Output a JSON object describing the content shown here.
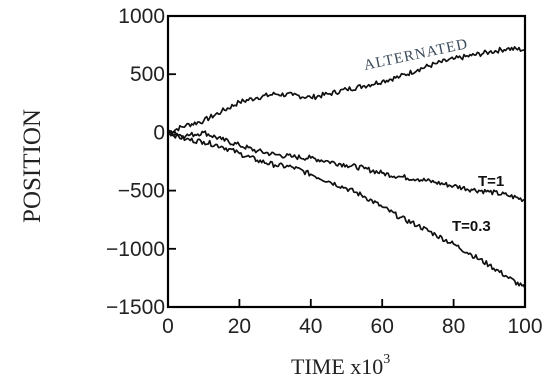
{
  "chart_data": {
    "type": "line",
    "xlabel": "TIME x10",
    "xlabel_superscript": "3",
    "ylabel": "POSITION",
    "xlim": [
      0,
      100
    ],
    "ylim": [
      -1500,
      1000
    ],
    "x_ticks": [
      0,
      20,
      40,
      60,
      80,
      100
    ],
    "x_tick_labels": [
      "0",
      "20",
      "40",
      "60",
      "80",
      "100"
    ],
    "y_ticks": [
      1000,
      500,
      0,
      -500,
      -1000,
      -1500
    ],
    "y_tick_labels": [
      "1000",
      "500",
      "0",
      "−500",
      "−1000",
      "−1500"
    ],
    "grid": false,
    "series": [
      {
        "name": "ALTERNATED",
        "x": [
          0,
          5,
          10,
          15,
          20,
          25,
          30,
          35,
          40,
          45,
          50,
          55,
          60,
          65,
          70,
          75,
          80,
          85,
          90,
          95,
          100
        ],
        "y": [
          0,
          60,
          100,
          180,
          260,
          300,
          330,
          320,
          300,
          330,
          370,
          400,
          440,
          480,
          540,
          590,
          630,
          660,
          690,
          720,
          710
        ]
      },
      {
        "name": "T=1",
        "x": [
          0,
          5,
          10,
          15,
          20,
          25,
          30,
          35,
          40,
          45,
          50,
          55,
          60,
          65,
          70,
          75,
          80,
          85,
          90,
          95,
          100
        ],
        "y": [
          0,
          -30,
          0,
          -60,
          -110,
          -160,
          -190,
          -210,
          -220,
          -250,
          -280,
          -310,
          -350,
          -380,
          -400,
          -430,
          -460,
          -490,
          -510,
          -540,
          -580
        ]
      },
      {
        "name": "T=0.3",
        "x": [
          0,
          5,
          10,
          15,
          20,
          25,
          30,
          35,
          40,
          45,
          50,
          55,
          60,
          65,
          70,
          75,
          80,
          85,
          90,
          95,
          100
        ],
        "y": [
          0,
          -60,
          -80,
          -120,
          -180,
          -240,
          -280,
          -300,
          -360,
          -420,
          -480,
          -550,
          -640,
          -730,
          -800,
          -880,
          -960,
          -1050,
          -1140,
          -1240,
          -1340
        ]
      }
    ],
    "annotations": [
      "ALTERNATED",
      "T=1",
      "T=0.3"
    ]
  }
}
